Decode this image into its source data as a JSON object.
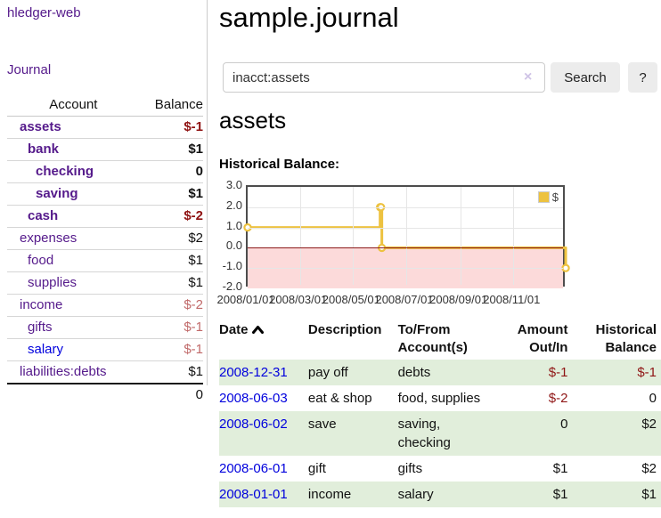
{
  "sidebar": {
    "brand": "hledger-web",
    "journal_link": "Journal",
    "accounts": {
      "headers": {
        "account": "Account",
        "balance": "Balance"
      },
      "rows": [
        {
          "name": "assets",
          "balance": "$-1",
          "level": 1,
          "current": true,
          "link_color": "purple",
          "balance_tone": "neg-strong"
        },
        {
          "name": "bank",
          "balance": "$1",
          "level": 2,
          "current": true,
          "link_color": "purple",
          "balance_tone": "plain"
        },
        {
          "name": "checking",
          "balance": "0",
          "level": 3,
          "current": true,
          "link_color": "purple",
          "balance_tone": "plain"
        },
        {
          "name": "saving",
          "balance": "$1",
          "level": 3,
          "current": true,
          "link_color": "purple",
          "balance_tone": "plain"
        },
        {
          "name": "cash",
          "balance": "$-2",
          "level": 2,
          "current": true,
          "link_color": "purple",
          "balance_tone": "neg-strong"
        },
        {
          "name": "expenses",
          "balance": "$2",
          "level": 1,
          "current": false,
          "link_color": "purple",
          "balance_tone": "plain"
        },
        {
          "name": "food",
          "balance": "$1",
          "level": 2,
          "current": false,
          "link_color": "purple",
          "balance_tone": "plain"
        },
        {
          "name": "supplies",
          "balance": "$1",
          "level": 2,
          "current": false,
          "link_color": "purple",
          "balance_tone": "plain"
        },
        {
          "name": "income",
          "balance": "$-2",
          "level": 1,
          "current": false,
          "link_color": "purple",
          "balance_tone": "neg-soft"
        },
        {
          "name": "gifts",
          "balance": "$-1",
          "level": 2,
          "current": false,
          "link_color": "purple",
          "balance_tone": "neg-soft"
        },
        {
          "name": "salary",
          "balance": "$-1",
          "level": 2,
          "current": false,
          "link_color": "blue",
          "balance_tone": "neg-soft"
        },
        {
          "name": "liabilities:debts",
          "balance": "$1",
          "level": 1,
          "current": false,
          "link_color": "purple",
          "balance_tone": "plain"
        }
      ],
      "total": "0"
    }
  },
  "header": {
    "title": "sample.journal"
  },
  "search": {
    "value": "inacct:assets",
    "clear_icon": "×",
    "button_label": "Search",
    "help_label": "?"
  },
  "account_page": {
    "title": "assets",
    "chart_heading": "Historical Balance:"
  },
  "chart_data": {
    "type": "line",
    "title": "Historical Balance",
    "series": [
      {
        "name": "$",
        "step": true,
        "points": [
          {
            "x": "2008/01/01",
            "y": 1
          },
          {
            "x": "2008/06/01",
            "y": 2
          },
          {
            "x": "2008/06/02",
            "y": 2
          },
          {
            "x": "2008/06/03",
            "y": 0
          },
          {
            "x": "2008/12/31",
            "y": -1
          }
        ]
      }
    ],
    "x_range": [
      "2008/01/01",
      "2009/01/01"
    ],
    "x_ticks": [
      "2008/01/01",
      "2008/03/01",
      "2008/05/01",
      "2008/07/01",
      "2008/09/01",
      "2008/11/01"
    ],
    "y_ticks": [
      "3.0",
      "2.0",
      "1.0",
      "0.0",
      "-1.0",
      "-2.0"
    ],
    "ylim": [
      -2,
      3
    ],
    "grid": true,
    "legend_position": "top-right",
    "line_color": "#edc240",
    "negative_region_color": "#fcdada",
    "zero_line_color": "#8b1a1a"
  },
  "register": {
    "headers": {
      "date": "Date",
      "description": "Description",
      "accounts": "To/From Account(s)",
      "amount": "Amount Out/In",
      "balance": "Historical Balance"
    },
    "sort": {
      "column": "date",
      "direction": "asc"
    },
    "rows": [
      {
        "date": "2008-12-31",
        "description": "pay off",
        "accounts": "debts",
        "amount": "$-1",
        "amount_neg": true,
        "balance": "$-1",
        "balance_neg": true
      },
      {
        "date": "2008-06-03",
        "description": "eat & shop",
        "accounts": "food, supplies",
        "amount": "$-2",
        "amount_neg": true,
        "balance": "0",
        "balance_neg": false
      },
      {
        "date": "2008-06-02",
        "description": "save",
        "accounts": "saving, checking",
        "amount": "0",
        "amount_neg": false,
        "balance": "$2",
        "balance_neg": false
      },
      {
        "date": "2008-06-01",
        "description": "gift",
        "accounts": "gifts",
        "amount": "$1",
        "amount_neg": false,
        "balance": "$2",
        "balance_neg": false
      },
      {
        "date": "2008-01-01",
        "description": "income",
        "accounts": "salary",
        "amount": "$1",
        "amount_neg": false,
        "balance": "$1",
        "balance_neg": false
      }
    ]
  },
  "colors": {
    "link_purple": "#551a8b",
    "link_blue": "#0000dd",
    "negative_strong": "#8f1212",
    "negative_soft": "#c16a6a",
    "row_stripe_green": "#e1eedb",
    "chart_line_gold": "#edc240",
    "chart_negative_fill": "#fcdada",
    "chart_zero_line": "#8b1a1a"
  }
}
